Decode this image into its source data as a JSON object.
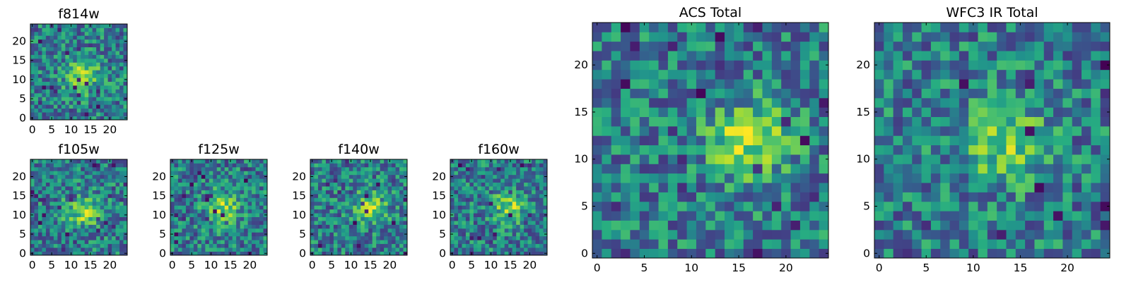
{
  "chart_data": [
    {
      "type": "heatmap",
      "title": "f814w",
      "grid_size": [
        25,
        25
      ],
      "x_ticks": [
        0,
        5,
        10,
        15,
        20
      ],
      "y_ticks": [
        0,
        5,
        10,
        15,
        20
      ],
      "xlim": [
        -0.5,
        24.5
      ],
      "ylim": [
        -0.5,
        24.5
      ],
      "colormap": "viridis",
      "grid": false,
      "peak": [
        13,
        11
      ],
      "peak_strength": 0.9,
      "seed": 11
    },
    {
      "type": "heatmap",
      "title": "f105w",
      "grid_size": [
        25,
        25
      ],
      "x_ticks": [
        0,
        5,
        10,
        15,
        20
      ],
      "y_ticks": [
        0,
        5,
        10,
        15,
        20
      ],
      "xlim": [
        -0.5,
        24.5
      ],
      "ylim": [
        -0.5,
        24.5
      ],
      "colormap": "viridis",
      "grid": false,
      "peak": [
        13,
        11
      ],
      "peak_strength": 0.8,
      "seed": 23
    },
    {
      "type": "heatmap",
      "title": "f125w",
      "grid_size": [
        25,
        25
      ],
      "x_ticks": [
        0,
        5,
        10,
        15,
        20
      ],
      "y_ticks": [
        0,
        5,
        10,
        15,
        20
      ],
      "xlim": [
        -0.5,
        24.5
      ],
      "ylim": [
        -0.5,
        24.5
      ],
      "colormap": "viridis",
      "grid": false,
      "peak": [
        13,
        12
      ],
      "peak_strength": 0.8,
      "seed": 37
    },
    {
      "type": "heatmap",
      "title": "f140w",
      "grid_size": [
        25,
        25
      ],
      "x_ticks": [
        0,
        5,
        10,
        15,
        20
      ],
      "y_ticks": [
        0,
        5,
        10,
        15,
        20
      ],
      "xlim": [
        -0.5,
        24.5
      ],
      "ylim": [
        -0.5,
        24.5
      ],
      "colormap": "viridis",
      "grid": false,
      "peak": [
        15,
        12
      ],
      "peak_strength": 0.8,
      "seed": 41
    },
    {
      "type": "heatmap",
      "title": "f160w",
      "grid_size": [
        25,
        25
      ],
      "x_ticks": [
        0,
        5,
        10,
        15,
        20
      ],
      "y_ticks": [
        0,
        5,
        10,
        15,
        20
      ],
      "xlim": [
        -0.5,
        24.5
      ],
      "ylim": [
        -0.5,
        24.5
      ],
      "colormap": "viridis",
      "grid": false,
      "peak": [
        15,
        12
      ],
      "peak_strength": 0.8,
      "seed": 53
    },
    {
      "type": "heatmap",
      "title": "ACS Total",
      "grid_size": [
        25,
        25
      ],
      "x_ticks": [
        0,
        5,
        10,
        15,
        20
      ],
      "y_ticks": [
        0,
        5,
        10,
        15,
        20
      ],
      "xlim": [
        -0.5,
        24.5
      ],
      "ylim": [
        -0.5,
        24.5
      ],
      "colormap": "viridis",
      "grid": false,
      "peak": [
        16,
        12
      ],
      "peak_strength": 0.9,
      "seed": 67
    },
    {
      "type": "heatmap",
      "title": "WFC3 IR Total",
      "grid_size": [
        25,
        25
      ],
      "x_ticks": [
        0,
        5,
        10,
        15,
        20
      ],
      "y_ticks": [
        0,
        5,
        10,
        15,
        20
      ],
      "xlim": [
        -0.5,
        24.5
      ],
      "ylim": [
        -0.5,
        24.5
      ],
      "colormap": "viridis",
      "grid": false,
      "peak": [
        13,
        12
      ],
      "peak_strength": 0.8,
      "seed": 79
    }
  ]
}
